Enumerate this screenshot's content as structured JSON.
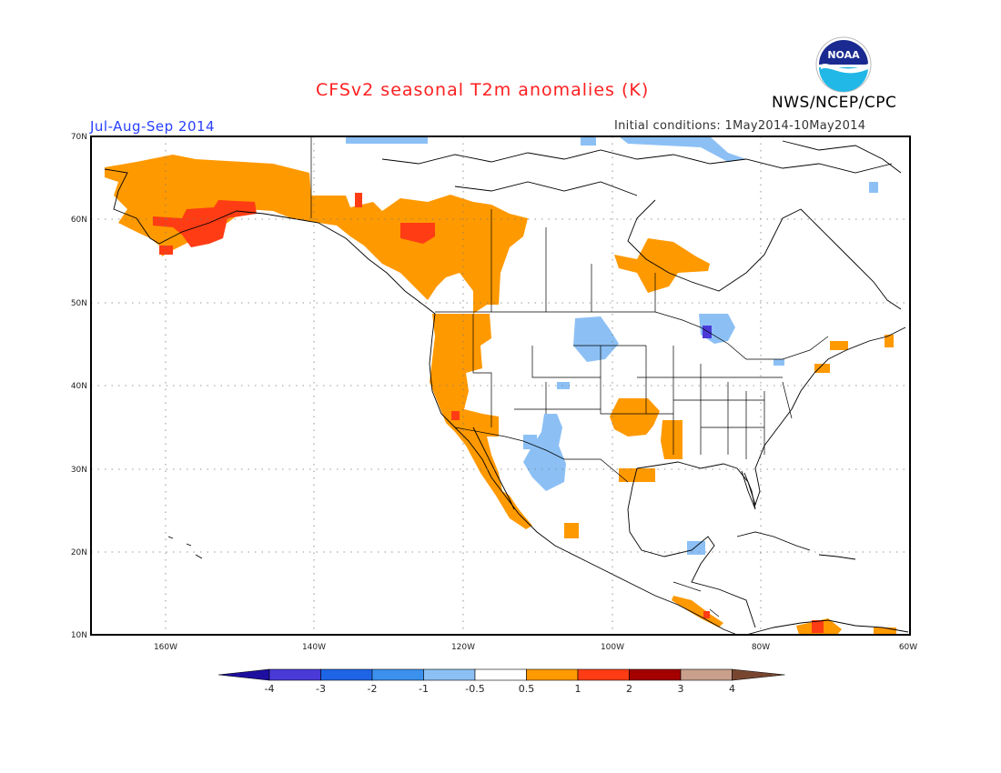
{
  "header": {
    "title": "CFSv2 seasonal T2m anomalies (K)",
    "period": "Jul-Aug-Sep 2014",
    "initial_conditions": "Initial conditions: 1May2014-10May2014",
    "agency": "NWS/NCEP/CPC",
    "logo_text": "NOAA"
  },
  "map": {
    "lat_labels": [
      "70N",
      "60N",
      "50N",
      "40N",
      "30N",
      "20N",
      "10N"
    ],
    "lon_labels": [
      "160W",
      "140W",
      "120W",
      "100W",
      "80W",
      "60W"
    ],
    "lat_range": [
      10,
      70
    ],
    "lon_range": [
      -170,
      -60
    ],
    "gridlines": true
  },
  "colorbar": {
    "tick_labels": [
      "-4",
      "-3",
      "-2",
      "-1",
      "-0.5",
      "0.5",
      "1",
      "2",
      "3",
      "4"
    ],
    "colors": [
      "#1e0fa0",
      "#4a3ad8",
      "#1e64e6",
      "#3c91ee",
      "#8cc0f5",
      "#ffffff",
      "#ff9900",
      "#ff3c14",
      "#a40000",
      "#c8a08c",
      "#784630"
    ]
  },
  "colors": {
    "warm": "#ff9900",
    "hot": "#ff3c14",
    "cool": "#8cc0f5",
    "cooler": "#3c91ee",
    "cold": "#4a3ad8"
  }
}
